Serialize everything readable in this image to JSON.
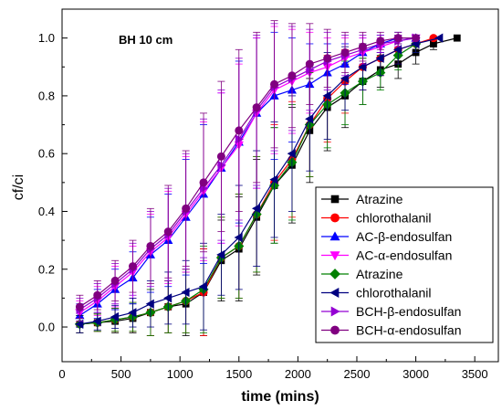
{
  "chart_data": {
    "type": "line",
    "title": "BH 10 cm",
    "xlabel": "time (mins)",
    "ylabel": "cf/ci",
    "xlim": [
      0,
      3700
    ],
    "ylim": [
      -0.12,
      1.1
    ],
    "xticks": [
      0,
      500,
      1000,
      1500,
      2000,
      2500,
      3000,
      3500
    ],
    "yticks": [
      0.0,
      0.2,
      0.4,
      0.6,
      0.8,
      1.0
    ],
    "xtick_labels": [
      "0",
      "500",
      "1000",
      "1500",
      "2000",
      "2500",
      "3000",
      "3500"
    ],
    "ytick_labels": [
      "0.0",
      "0.2",
      "0.4",
      "0.6",
      "0.8",
      "1.0"
    ],
    "grid": false,
    "legend_position": "bottom-right",
    "series": [
      {
        "name": "Atrazine",
        "marker": "square",
        "color": "#000000",
        "x": [
          150,
          300,
          450,
          600,
          750,
          900,
          1050,
          1200,
          1350,
          1500,
          1650,
          1800,
          1950,
          2100,
          2250,
          2400,
          2550,
          2700,
          2850,
          3000,
          3150,
          3350
        ],
        "y": [
          0.01,
          0.015,
          0.02,
          0.03,
          0.05,
          0.07,
          0.08,
          0.12,
          0.23,
          0.27,
          0.38,
          0.49,
          0.56,
          0.68,
          0.76,
          0.8,
          0.85,
          0.89,
          0.91,
          0.95,
          0.98,
          1.0
        ],
        "err": [
          0.03,
          0.03,
          0.04,
          0.05,
          0.08,
          0.09,
          0.11,
          0.15,
          0.14,
          0.18,
          0.2,
          0.2,
          0.2,
          0.18,
          0.15,
          0.11,
          0.08,
          0.06,
          0.05,
          0.04,
          0.02,
          0.0
        ]
      },
      {
        "name": "chlorothalanil",
        "marker": "circle",
        "color": "#ff0000",
        "x": [
          150,
          300,
          450,
          600,
          750,
          900,
          1050,
          1200,
          1350,
          1500,
          1650,
          1800,
          1950,
          2100,
          2250,
          2400,
          2550,
          2700,
          2850,
          3000,
          3150
        ],
        "y": [
          0.01,
          0.015,
          0.025,
          0.035,
          0.05,
          0.07,
          0.09,
          0.12,
          0.24,
          0.28,
          0.39,
          0.5,
          0.58,
          0.7,
          0.79,
          0.85,
          0.9,
          0.93,
          0.96,
          0.98,
          1.0
        ],
        "err": [
          0.03,
          0.03,
          0.04,
          0.05,
          0.08,
          0.09,
          0.11,
          0.15,
          0.14,
          0.18,
          0.2,
          0.2,
          0.2,
          0.18,
          0.15,
          0.11,
          0.08,
          0.06,
          0.05,
          0.03,
          0.0
        ]
      },
      {
        "name": "AC-β-endosulfan",
        "marker": "triangle-up",
        "color": "#0000ff",
        "x": [
          150,
          300,
          450,
          600,
          750,
          900,
          1050,
          1200,
          1350,
          1500,
          1650,
          1800,
          1950,
          2100,
          2250,
          2400,
          2550,
          2700,
          2850,
          3000
        ],
        "y": [
          0.04,
          0.08,
          0.13,
          0.17,
          0.25,
          0.3,
          0.38,
          0.46,
          0.55,
          0.64,
          0.74,
          0.8,
          0.82,
          0.84,
          0.88,
          0.91,
          0.95,
          0.98,
          1.0,
          1.0
        ],
        "err": [
          0.04,
          0.05,
          0.07,
          0.09,
          0.13,
          0.16,
          0.2,
          0.24,
          0.26,
          0.28,
          0.26,
          0.22,
          0.18,
          0.14,
          0.1,
          0.07,
          0.05,
          0.03,
          0.02,
          0.0
        ]
      },
      {
        "name": "AC-α-endosulfan",
        "marker": "triangle-down",
        "color": "#ff00ff",
        "x": [
          150,
          300,
          450,
          600,
          750,
          900,
          1050,
          1200,
          1350,
          1500,
          1650,
          1800,
          1950,
          2100,
          2250,
          2400,
          2550,
          2700,
          2850,
          3000
        ],
        "y": [
          0.05,
          0.09,
          0.14,
          0.19,
          0.26,
          0.31,
          0.39,
          0.47,
          0.55,
          0.63,
          0.74,
          0.82,
          0.85,
          0.88,
          0.9,
          0.93,
          0.95,
          0.97,
          0.99,
          1.0
        ],
        "err": [
          0.04,
          0.05,
          0.07,
          0.09,
          0.13,
          0.16,
          0.2,
          0.24,
          0.26,
          0.28,
          0.26,
          0.22,
          0.18,
          0.14,
          0.1,
          0.07,
          0.05,
          0.03,
          0.02,
          0.0
        ]
      },
      {
        "name": "Atrazine",
        "marker": "diamond",
        "color": "#008000",
        "x": [
          150,
          300,
          450,
          600,
          750,
          900,
          1050,
          1200,
          1350,
          1500,
          1650,
          1800,
          1950,
          2100,
          2250,
          2400,
          2550,
          2700,
          2850,
          3000
        ],
        "y": [
          0.01,
          0.015,
          0.025,
          0.035,
          0.05,
          0.07,
          0.09,
          0.13,
          0.24,
          0.28,
          0.39,
          0.49,
          0.57,
          0.7,
          0.77,
          0.81,
          0.85,
          0.88,
          0.94,
          0.98
        ],
        "err": [
          0.03,
          0.03,
          0.04,
          0.05,
          0.08,
          0.09,
          0.11,
          0.15,
          0.14,
          0.18,
          0.2,
          0.2,
          0.2,
          0.18,
          0.15,
          0.11,
          0.08,
          0.06,
          0.05,
          0.03
        ]
      },
      {
        "name": "chlorothalanil",
        "marker": "triangle-left",
        "color": "#000080",
        "x": [
          150,
          300,
          450,
          600,
          750,
          900,
          1050,
          1200,
          1350,
          1500,
          1650,
          1800,
          1950,
          2100,
          2250,
          2400,
          2550,
          2700,
          2850,
          3000,
          3200
        ],
        "y": [
          0.01,
          0.02,
          0.035,
          0.05,
          0.08,
          0.1,
          0.12,
          0.14,
          0.25,
          0.31,
          0.41,
          0.51,
          0.6,
          0.72,
          0.8,
          0.86,
          0.9,
          0.93,
          0.96,
          0.98,
          1.0
        ],
        "err": [
          0.03,
          0.03,
          0.04,
          0.05,
          0.08,
          0.09,
          0.11,
          0.15,
          0.14,
          0.18,
          0.2,
          0.2,
          0.2,
          0.18,
          0.15,
          0.11,
          0.08,
          0.06,
          0.05,
          0.03,
          0.0
        ]
      },
      {
        "name": "BCH-β-endosulfan",
        "marker": "triangle-right",
        "color": "#9400d3",
        "x": [
          150,
          300,
          450,
          600,
          750,
          900,
          1050,
          1200,
          1350,
          1500,
          1650,
          1800,
          1950,
          2100,
          2250,
          2400,
          2550,
          2700,
          2850,
          3000
        ],
        "y": [
          0.06,
          0.1,
          0.15,
          0.2,
          0.27,
          0.32,
          0.4,
          0.48,
          0.56,
          0.65,
          0.75,
          0.83,
          0.86,
          0.89,
          0.92,
          0.94,
          0.96,
          0.98,
          0.99,
          1.0
        ],
        "err": [
          0.04,
          0.05,
          0.07,
          0.09,
          0.13,
          0.16,
          0.2,
          0.24,
          0.26,
          0.28,
          0.26,
          0.22,
          0.18,
          0.14,
          0.1,
          0.07,
          0.05,
          0.03,
          0.02,
          0.0
        ]
      },
      {
        "name": "BCH-α-endosulfan",
        "marker": "circle",
        "color": "#800080",
        "x": [
          150,
          300,
          450,
          600,
          750,
          900,
          1050,
          1200,
          1350,
          1500,
          1650,
          1800,
          1950,
          2100,
          2250,
          2400,
          2550,
          2700,
          2850,
          3000
        ],
        "y": [
          0.07,
          0.11,
          0.16,
          0.21,
          0.28,
          0.33,
          0.41,
          0.5,
          0.59,
          0.68,
          0.76,
          0.84,
          0.87,
          0.91,
          0.93,
          0.95,
          0.97,
          0.99,
          1.0,
          1.0
        ],
        "err": [
          0.04,
          0.05,
          0.07,
          0.09,
          0.13,
          0.16,
          0.2,
          0.24,
          0.26,
          0.28,
          0.26,
          0.22,
          0.18,
          0.14,
          0.1,
          0.07,
          0.05,
          0.03,
          0.02,
          0.0
        ]
      }
    ]
  }
}
